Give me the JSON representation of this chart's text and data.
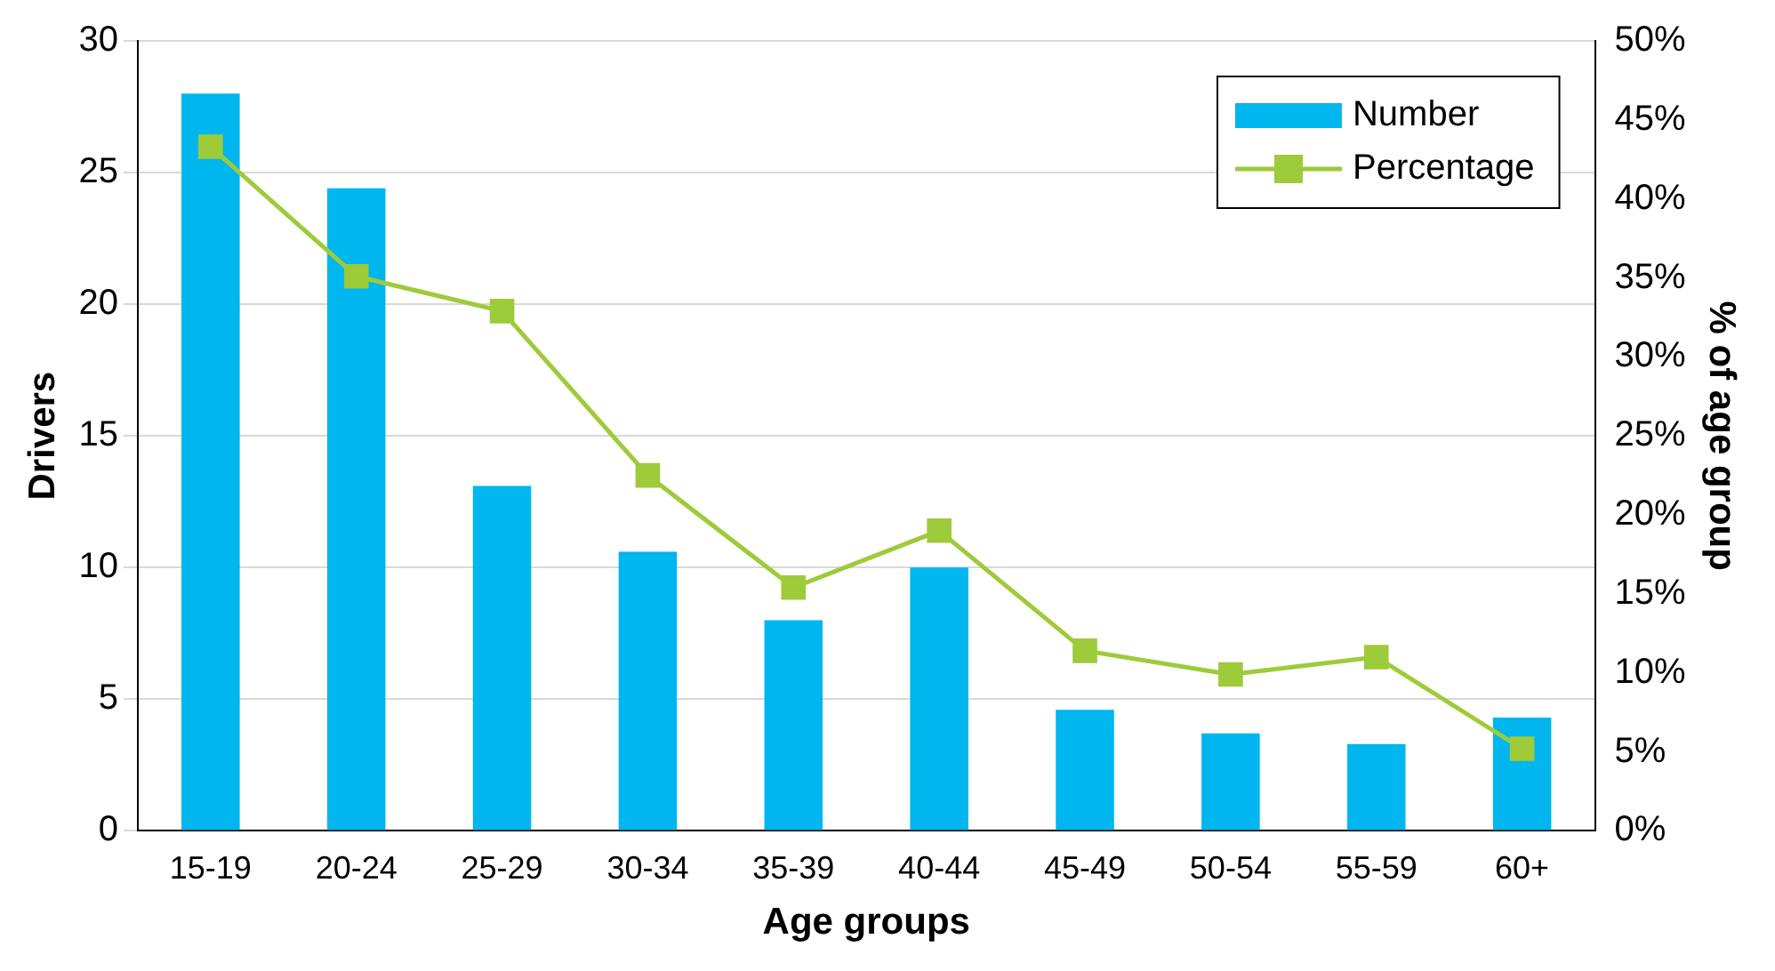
{
  "chart_data": {
    "type": "bar",
    "xlabel": "Age groups",
    "ylabel": "Drivers",
    "y2label": "% of age group",
    "categories": [
      "15-19",
      "20-24",
      "25-29",
      "30-34",
      "35-39",
      "40-44",
      "45-49",
      "50-54",
      "55-59",
      "60+"
    ],
    "series": [
      {
        "name": "Number",
        "color": "#00b6ef",
        "values": [
          28.0,
          24.4,
          13.1,
          10.6,
          8.0,
          10.0,
          4.6,
          3.7,
          3.3,
          4.3
        ]
      },
      {
        "name": "Percentage",
        "type": "line",
        "axis": "y2",
        "color": "#9dcb3a",
        "marker": "square",
        "values": [
          43.3,
          35.1,
          32.9,
          22.5,
          15.4,
          19.0,
          11.4,
          9.9,
          11.0,
          5.2
        ]
      }
    ],
    "ylim": [
      0,
      30
    ],
    "yticks": [
      0,
      5,
      10,
      15,
      20,
      25,
      30
    ],
    "y2lim": [
      0,
      50
    ],
    "y2ticks": [
      {
        "value": 0,
        "label": "0%"
      },
      {
        "value": 5,
        "label": "5%"
      },
      {
        "value": 10,
        "label": "10%"
      },
      {
        "value": 15,
        "label": "15%"
      },
      {
        "value": 20,
        "label": "20%"
      },
      {
        "value": 25,
        "label": "25%"
      },
      {
        "value": 30,
        "label": "30%"
      },
      {
        "value": 35,
        "label": "35%"
      },
      {
        "value": 40,
        "label": "40%"
      },
      {
        "value": 45,
        "label": "45%"
      },
      {
        "value": 50,
        "label": "50%"
      }
    ],
    "grid": "y",
    "legend": "top right"
  }
}
